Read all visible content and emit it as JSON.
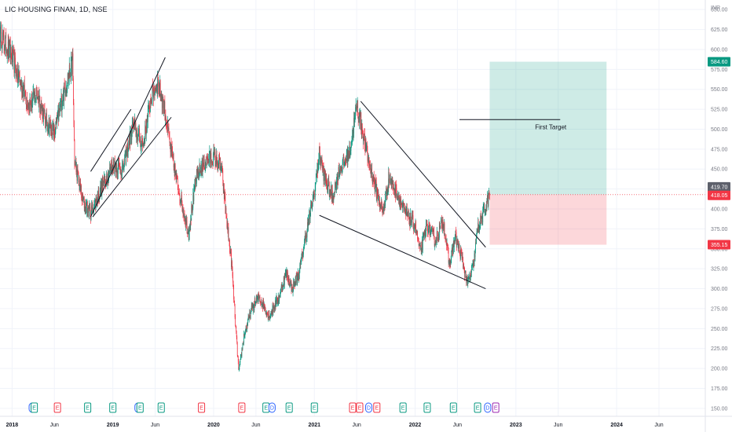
{
  "chart_data": {
    "type": "candlestick",
    "title": "LIC HOUSING FINAN, 1D, NSE",
    "currency": "INR",
    "ylim": [
      140,
      662
    ],
    "y_ticks": [
      150,
      175,
      200,
      225,
      250,
      275,
      300,
      325,
      350,
      375,
      400,
      425,
      450,
      475,
      500,
      525,
      550,
      575,
      600,
      625,
      650
    ],
    "x_tick_labels": [
      "2018",
      "Jun",
      "2019",
      "Jun",
      "2020",
      "Jun",
      "2021",
      "Jun",
      "2022",
      "Jun",
      "2023",
      "Jun",
      "2024",
      "Jun"
    ],
    "x_tick_dates": [
      2018.0,
      2018.42,
      2019.0,
      2019.42,
      2020.0,
      2020.42,
      2021.0,
      2021.42,
      2022.0,
      2022.42,
      2023.0,
      2023.42,
      2024.0,
      2024.42
    ],
    "xlim": [
      2017.88,
      2024.88
    ],
    "up_color": "#089981",
    "down_color": "#f23645",
    "price_path": [
      [
        2017.88,
        620
      ],
      [
        2018.0,
        590
      ],
      [
        2018.08,
        560
      ],
      [
        2018.17,
        530
      ],
      [
        2018.25,
        545
      ],
      [
        2018.33,
        510
      ],
      [
        2018.42,
        495
      ],
      [
        2018.5,
        540
      ],
      [
        2018.6,
        585
      ],
      [
        2018.62,
        460
      ],
      [
        2018.7,
        410
      ],
      [
        2018.78,
        395
      ],
      [
        2018.9,
        430
      ],
      [
        2019.0,
        455
      ],
      [
        2019.1,
        450
      ],
      [
        2019.2,
        505
      ],
      [
        2019.3,
        480
      ],
      [
        2019.38,
        540
      ],
      [
        2019.45,
        560
      ],
      [
        2019.52,
        520
      ],
      [
        2019.58,
        470
      ],
      [
        2019.66,
        420
      ],
      [
        2019.75,
        370
      ],
      [
        2019.83,
        440
      ],
      [
        2019.92,
        460
      ],
      [
        2020.0,
        465
      ],
      [
        2020.08,
        450
      ],
      [
        2020.13,
        385
      ],
      [
        2020.18,
        330
      ],
      [
        2020.22,
        250
      ],
      [
        2020.25,
        195
      ],
      [
        2020.3,
        240
      ],
      [
        2020.38,
        275
      ],
      [
        2020.45,
        290
      ],
      [
        2020.55,
        265
      ],
      [
        2020.65,
        290
      ],
      [
        2020.72,
        320
      ],
      [
        2020.78,
        300
      ],
      [
        2020.85,
        320
      ],
      [
        2020.92,
        370
      ],
      [
        2021.0,
        420
      ],
      [
        2021.05,
        470
      ],
      [
        2021.1,
        440
      ],
      [
        2021.18,
        415
      ],
      [
        2021.25,
        450
      ],
      [
        2021.35,
        470
      ],
      [
        2021.42,
        530
      ],
      [
        2021.46,
        510
      ],
      [
        2021.52,
        470
      ],
      [
        2021.6,
        430
      ],
      [
        2021.68,
        395
      ],
      [
        2021.74,
        440
      ],
      [
        2021.82,
        420
      ],
      [
        2021.9,
        395
      ],
      [
        2022.0,
        380
      ],
      [
        2022.05,
        345
      ],
      [
        2022.12,
        380
      ],
      [
        2022.2,
        360
      ],
      [
        2022.28,
        385
      ],
      [
        2022.34,
        330
      ],
      [
        2022.4,
        365
      ],
      [
        2022.46,
        340
      ],
      [
        2022.52,
        305
      ],
      [
        2022.58,
        330
      ],
      [
        2022.62,
        375
      ],
      [
        2022.68,
        395
      ],
      [
        2022.74,
        418
      ]
    ],
    "last_price": 418.05,
    "last_close_label": "419.70",
    "current_price_label": "418.05",
    "position": {
      "entry": 418.05,
      "target": 584.6,
      "stop": 355.15,
      "target_label": "584.60",
      "stop_label": "355.15",
      "start_date": 2022.74,
      "end_date": 2023.9
    },
    "target_line": {
      "price": 512,
      "start_date": 2022.44,
      "end_date": 2023.44
    },
    "annotations": [
      {
        "text": "First Target"
      }
    ],
    "trendlines": [
      {
        "from": [
          2018.78,
          390
        ],
        "to": [
          2019.52,
          590
        ]
      },
      {
        "from": [
          2018.78,
          447
        ],
        "to": [
          2019.18,
          525
        ]
      },
      {
        "from": [
          2018.8,
          390
        ],
        "to": [
          2019.58,
          515
        ]
      },
      {
        "from": [
          2021.46,
          535
        ],
        "to": [
          2022.7,
          352
        ]
      },
      {
        "from": [
          2021.05,
          392
        ],
        "to": [
          2022.7,
          300
        ]
      }
    ],
    "events": [
      {
        "date": 2018.2,
        "label": "D",
        "color": "#2962ff"
      },
      {
        "date": 2018.22,
        "label": "E",
        "color": "#089981"
      },
      {
        "date": 2018.45,
        "label": "E",
        "color": "#f23645"
      },
      {
        "date": 2018.75,
        "label": "E",
        "color": "#089981"
      },
      {
        "date": 2019.0,
        "label": "E",
        "color": "#089981"
      },
      {
        "date": 2019.25,
        "label": "D",
        "color": "#2962ff"
      },
      {
        "date": 2019.27,
        "label": "E",
        "color": "#089981"
      },
      {
        "date": 2019.48,
        "label": "E",
        "color": "#089981"
      },
      {
        "date": 2019.88,
        "label": "E",
        "color": "#f23645"
      },
      {
        "date": 2020.28,
        "label": "E",
        "color": "#f23645"
      },
      {
        "date": 2020.52,
        "label": "E",
        "color": "#089981"
      },
      {
        "date": 2020.58,
        "label": "D",
        "color": "#2962ff"
      },
      {
        "date": 2020.75,
        "label": "E",
        "color": "#089981"
      },
      {
        "date": 2021.0,
        "label": "E",
        "color": "#089981"
      },
      {
        "date": 2021.38,
        "label": "E",
        "color": "#f23645"
      },
      {
        "date": 2021.45,
        "label": "E",
        "color": "#f23645"
      },
      {
        "date": 2021.54,
        "label": "D",
        "color": "#2962ff"
      },
      {
        "date": 2021.62,
        "label": "E",
        "color": "#f23645"
      },
      {
        "date": 2021.88,
        "label": "E",
        "color": "#089981"
      },
      {
        "date": 2022.12,
        "label": "E",
        "color": "#089981"
      },
      {
        "date": 2022.38,
        "label": "E",
        "color": "#089981"
      },
      {
        "date": 2022.62,
        "label": "E",
        "color": "#089981"
      },
      {
        "date": 2022.72,
        "label": "D",
        "color": "#2962ff"
      },
      {
        "date": 2022.8,
        "label": "E",
        "color": "#9c27b0"
      }
    ]
  }
}
